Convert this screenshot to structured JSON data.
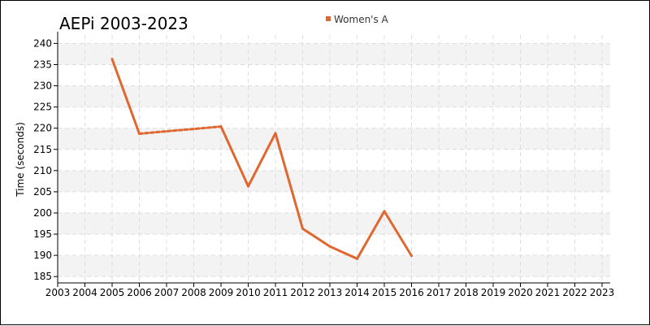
{
  "chart_data": {
    "type": "line",
    "title": "AEPi 2003-2023",
    "xlabel": "",
    "ylabel": "Time (seconds)",
    "xlim": [
      2003,
      2023
    ],
    "ylim": [
      183.5,
      242
    ],
    "x_ticks": [
      "2003",
      "2004",
      "2005",
      "2006",
      "2007",
      "2008",
      "2009",
      "2010",
      "2011",
      "2012",
      "2013",
      "2014",
      "2015",
      "2016",
      "2017",
      "2018",
      "2019",
      "2020",
      "2021",
      "2022",
      "2023"
    ],
    "y_ticks": [
      185,
      190,
      195,
      200,
      205,
      210,
      215,
      220,
      225,
      230,
      235,
      240
    ],
    "grid": true,
    "legend_position": "top-center",
    "series": [
      {
        "name": "Women's A",
        "color": "#e06830",
        "points": [
          {
            "x": 2005,
            "y": 236.3
          },
          {
            "x": 2006,
            "y": 218.7
          },
          {
            "x": 2009,
            "y": 220.4
          },
          {
            "x": 2010,
            "y": 206.3
          },
          {
            "x": 2011,
            "y": 218.8
          },
          {
            "x": 2012,
            "y": 196.3
          },
          {
            "x": 2013,
            "y": 192.1
          },
          {
            "x": 2014,
            "y": 189.2
          },
          {
            "x": 2015,
            "y": 200.4
          },
          {
            "x": 2016,
            "y": 189.9
          }
        ],
        "dashed_segments": [
          [
            2006,
            2009
          ]
        ]
      }
    ]
  }
}
